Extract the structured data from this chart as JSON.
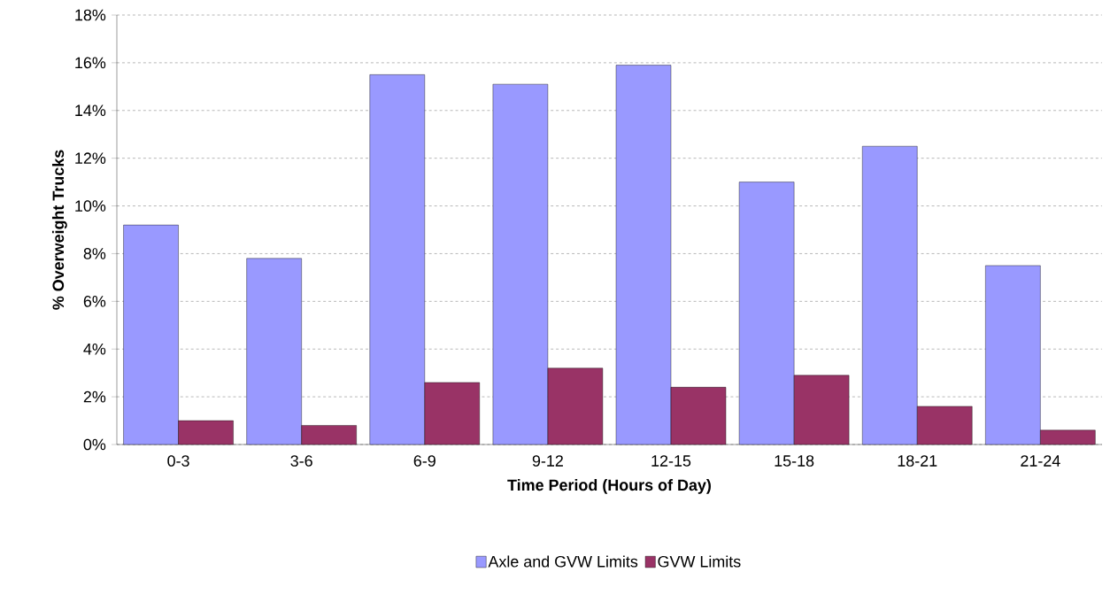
{
  "chart_data": {
    "type": "bar",
    "xlabel": "Time Period (Hours of Day)",
    "ylabel": "% Overweight Trucks",
    "categories": [
      "0-3",
      "3-6",
      "6-9",
      "9-12",
      "12-15",
      "15-18",
      "18-21",
      "21-24"
    ],
    "series": [
      {
        "name": "Axle and GVW Limits",
        "color": "#9999ff",
        "values": [
          9.2,
          7.8,
          15.5,
          15.1,
          15.9,
          11.0,
          12.5,
          7.5
        ]
      },
      {
        "name": "GVW Limits",
        "color": "#993366",
        "values": [
          1.0,
          0.8,
          2.6,
          3.2,
          2.4,
          2.9,
          1.6,
          0.6
        ]
      }
    ],
    "ylim": [
      0,
      18
    ],
    "yticks": [
      {
        "value": 0,
        "label": "0%"
      },
      {
        "value": 2,
        "label": "2%"
      },
      {
        "value": 4,
        "label": "4%"
      },
      {
        "value": 6,
        "label": "6%"
      },
      {
        "value": 8,
        "label": "8%"
      },
      {
        "value": 10,
        "label": "10%"
      },
      {
        "value": 12,
        "label": "12%"
      },
      {
        "value": 14,
        "label": "14%"
      },
      {
        "value": 16,
        "label": "16%"
      },
      {
        "value": 18,
        "label": "18%"
      }
    ],
    "grid": "y",
    "legend": "bottom"
  }
}
